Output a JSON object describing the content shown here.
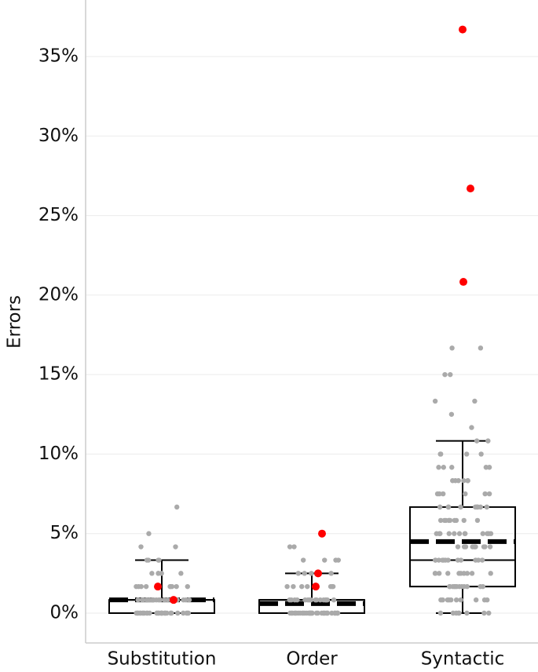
{
  "chart_data": {
    "type": "box",
    "ylabel": "Errors",
    "y_unit": "%",
    "ylim": [
      -2,
      38
    ],
    "yticks": [
      0,
      5,
      10,
      15,
      20,
      25,
      30,
      35
    ],
    "ytick_labels": [
      "0%",
      "5%",
      "10%",
      "15%",
      "20%",
      "25%",
      "30%",
      "35%"
    ],
    "grid": "horizontal",
    "categories": [
      "Substitution",
      "Order",
      "Syntactic"
    ],
    "boxes": [
      {
        "category": "Substitution",
        "q1": 0.0,
        "median": 0.83,
        "q3": 0.83,
        "mean": 0.83,
        "whisker_low": 0.0,
        "whisker_high": 3.33
      },
      {
        "category": "Order",
        "q1": 0.0,
        "median": 0.83,
        "q3": 0.83,
        "mean": 0.6,
        "whisker_low": 0.0,
        "whisker_high": 2.5
      },
      {
        "category": "Syntactic",
        "q1": 1.67,
        "median": 3.33,
        "q3": 6.67,
        "mean": 4.5,
        "whisker_low": 0.0,
        "whisker_high": 10.83
      }
    ],
    "highlight_points": [
      {
        "category": "Substitution",
        "values": [
          1.67,
          0.83
        ]
      },
      {
        "category": "Order",
        "values": [
          5.0,
          2.5,
          1.67
        ]
      },
      {
        "category": "Syntactic",
        "values": [
          36.7,
          26.7,
          20.83
        ]
      }
    ],
    "observations": [
      {
        "category": "Substitution",
        "values": [
          0,
          0,
          0,
          0,
          0,
          0,
          0,
          0,
          0,
          0,
          0,
          0,
          0,
          0,
          0,
          0,
          0,
          0,
          0,
          0,
          0,
          0,
          0,
          0,
          0,
          0,
          0,
          0,
          0,
          0,
          0.83,
          0.83,
          0.83,
          0.83,
          0.83,
          0.83,
          0.83,
          0.83,
          0.83,
          0.83,
          0.83,
          0.83,
          0.83,
          0.83,
          0.83,
          0.83,
          0.83,
          0.83,
          0.83,
          0.83,
          1.67,
          1.67,
          1.67,
          1.67,
          1.67,
          1.67,
          1.67,
          1.67,
          1.67,
          1.67,
          1.67,
          2.5,
          2.5,
          2.5,
          2.5,
          2.5,
          3.33,
          3.33,
          3.33,
          3.33,
          4.17,
          4.17,
          5.0,
          6.67
        ]
      },
      {
        "category": "Order",
        "values": [
          0,
          0,
          0,
          0,
          0,
          0,
          0,
          0,
          0,
          0,
          0,
          0,
          0,
          0,
          0,
          0,
          0,
          0,
          0,
          0,
          0,
          0,
          0,
          0,
          0,
          0,
          0,
          0,
          0,
          0,
          0,
          0,
          0,
          0,
          0,
          0,
          0.83,
          0.83,
          0.83,
          0.83,
          0.83,
          0.83,
          0.83,
          0.83,
          0.83,
          0.83,
          0.83,
          0.83,
          0.83,
          0.83,
          0.83,
          0.83,
          1.67,
          1.67,
          1.67,
          1.67,
          1.67,
          1.67,
          1.67,
          2.5,
          2.5,
          2.5,
          2.5,
          3.33,
          3.33,
          3.33,
          3.33,
          4.17,
          4.17
        ]
      },
      {
        "category": "Syntactic",
        "values": [
          0,
          0,
          0,
          0,
          0,
          0,
          0,
          0,
          0.83,
          0.83,
          0.83,
          0.83,
          0.83,
          0.83,
          0.83,
          0.83,
          0.83,
          0.83,
          1.67,
          1.67,
          1.67,
          1.67,
          1.67,
          1.67,
          1.67,
          1.67,
          1.67,
          1.67,
          1.67,
          1.67,
          2.5,
          2.5,
          2.5,
          2.5,
          2.5,
          2.5,
          2.5,
          2.5,
          2.5,
          2.5,
          3.33,
          3.33,
          3.33,
          3.33,
          3.33,
          3.33,
          3.33,
          3.33,
          3.33,
          3.33,
          3.33,
          3.33,
          4.17,
          4.17,
          4.17,
          4.17,
          4.17,
          4.17,
          4.17,
          4.17,
          4.17,
          4.17,
          5.0,
          5.0,
          5.0,
          5.0,
          5.0,
          5.0,
          5.0,
          5.0,
          5.0,
          5.0,
          5.0,
          5.0,
          5.83,
          5.83,
          5.83,
          5.83,
          5.83,
          5.83,
          5.83,
          5.83,
          5.83,
          5.83,
          6.67,
          6.67,
          6.67,
          6.67,
          6.67,
          6.67,
          6.67,
          6.67,
          6.67,
          6.67,
          7.5,
          7.5,
          7.5,
          7.5,
          7.5,
          7.5,
          8.33,
          8.33,
          8.33,
          8.33,
          8.33,
          8.33,
          9.17,
          9.17,
          9.17,
          9.17,
          9.17,
          10.0,
          10.0,
          10.0,
          10.0,
          10.83,
          10.83,
          11.67,
          12.5,
          13.33,
          13.33,
          15.0,
          15.0,
          16.67,
          16.67
        ]
      }
    ],
    "colors": {
      "point": "#aaaaaa",
      "highlight": "#ff0000",
      "box": "#000000",
      "grid": "#ebebeb",
      "axis": "#cccccc"
    }
  }
}
